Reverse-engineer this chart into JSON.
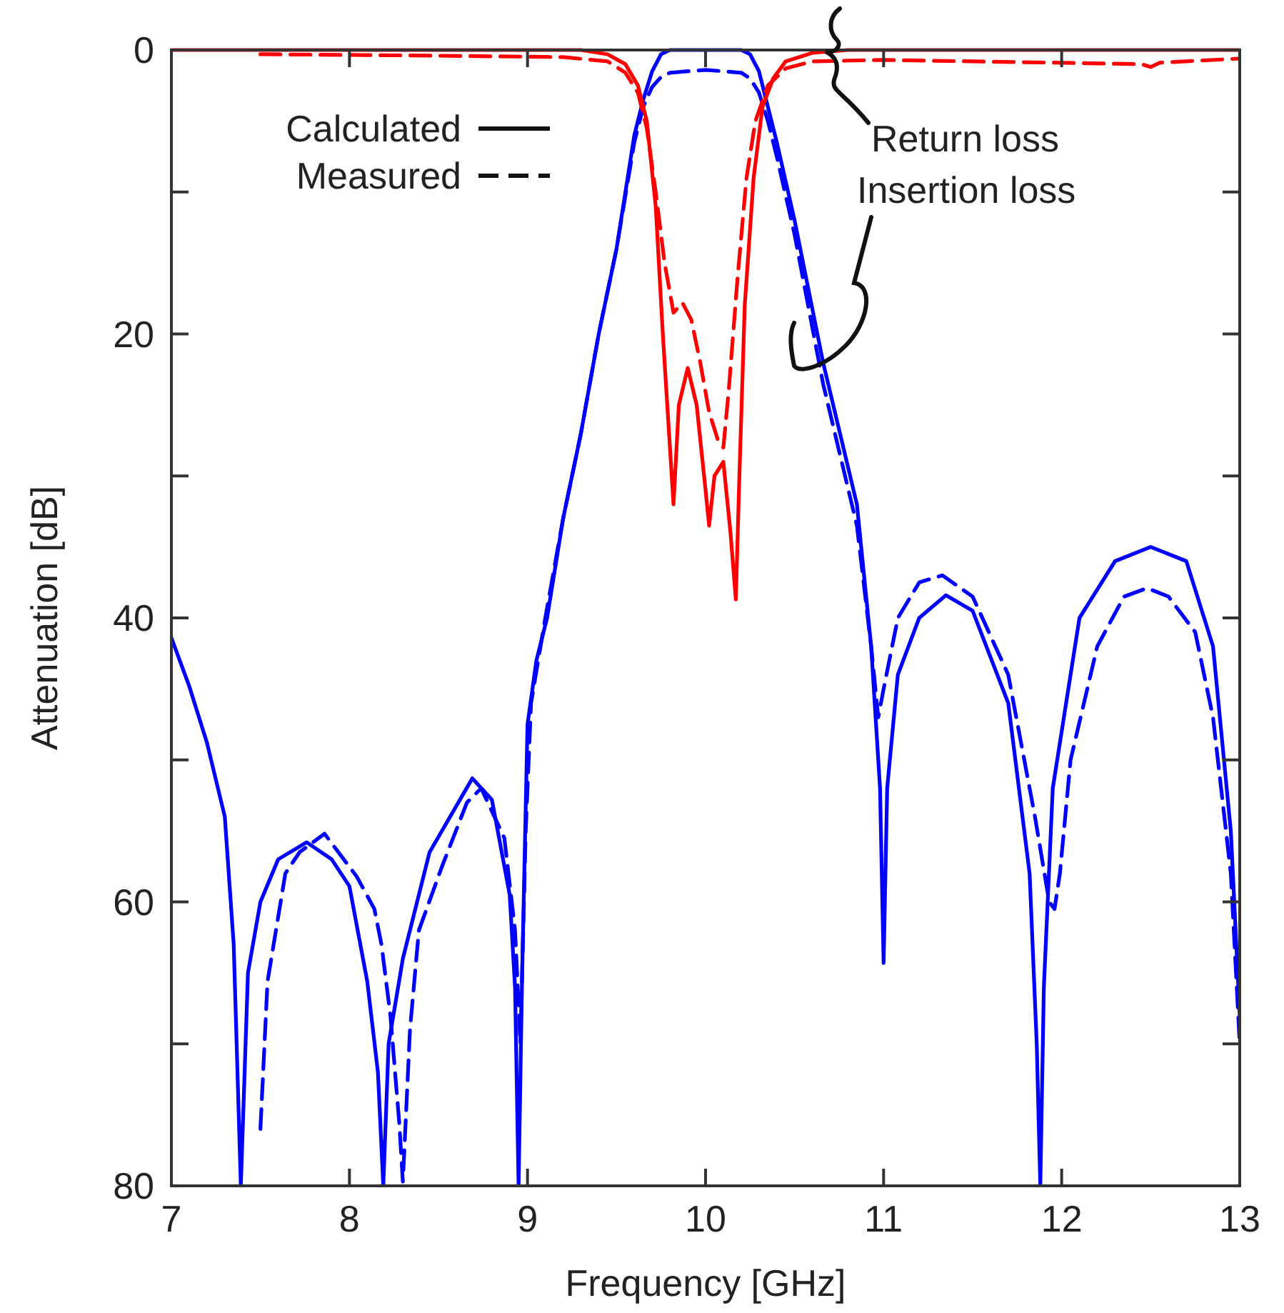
{
  "chart_data": {
    "type": "line",
    "xlabel": "Frequency [GHz]",
    "ylabel": "Attenuation [dB]",
    "xlim": [
      7,
      13
    ],
    "ylim": [
      80,
      0
    ],
    "xticks": [
      7,
      8,
      9,
      10,
      11,
      12,
      13
    ],
    "yticks": [
      0,
      {
        "value": 10,
        "label": null
      },
      20,
      {
        "value": 30,
        "label": null
      },
      40,
      {
        "value": 50,
        "label": null
      },
      60,
      {
        "value": 70,
        "label": null
      },
      80
    ],
    "grid": false,
    "annotations": [
      "Calculated",
      "Measured",
      "Return loss",
      "Insertion loss"
    ],
    "series": [
      {
        "color": "#0000ff",
        "line_style": "solid",
        "x": [
          7,
          7.1,
          7.2,
          7.3,
          7.35,
          7.39,
          7.43,
          7.5,
          7.6,
          7.76,
          7.9,
          8.0,
          8.1,
          8.16,
          8.19,
          8.22,
          8.3,
          8.45,
          8.69,
          8.8,
          8.9,
          8.93,
          8.95,
          8.97,
          9.0,
          9.05,
          9.11,
          9.2,
          9.3,
          9.4,
          9.5,
          9.6,
          9.65,
          9.7,
          9.75,
          9.8,
          10.0,
          10.2,
          10.25,
          10.3,
          10.35,
          10.4,
          10.5,
          10.66,
          10.85,
          10.93,
          10.98,
          11.0,
          11.02,
          11.08,
          11.2,
          11.35,
          11.5,
          11.7,
          11.82,
          11.86,
          11.88,
          11.9,
          11.95,
          12.1,
          12.3,
          12.5,
          12.7,
          12.85,
          12.95,
          13
        ],
        "values": [
          41.4,
          44.8,
          48.8,
          54,
          63,
          80,
          65,
          60,
          57,
          55.8,
          57,
          58.9,
          65.6,
          72,
          80,
          70,
          64,
          56.5,
          51.3,
          52.8,
          59.5,
          66,
          80,
          65,
          47.5,
          43,
          40,
          33,
          27,
          20,
          14,
          6,
          3.5,
          1.5,
          0.3,
          0,
          0,
          0,
          0.3,
          1.5,
          4,
          6.5,
          12,
          22,
          32,
          42,
          52,
          64.3,
          52,
          44,
          40,
          38.4,
          39.5,
          46,
          58,
          70,
          80,
          66,
          52,
          40,
          36,
          35,
          36,
          42,
          55,
          68
        ]
      },
      {
        "color": "#0000ff",
        "line_style": "dashed",
        "x": [
          7.5,
          7.54,
          7.64,
          7.72,
          7.86,
          8.04,
          8.14,
          8.18,
          8.23,
          8.28,
          8.3,
          8.34,
          8.39,
          8.52,
          8.66,
          8.74,
          8.87,
          8.93,
          8.96,
          8.99,
          9.02,
          9.1,
          9.2,
          9.3,
          9.4,
          9.5,
          9.6,
          9.65,
          9.7,
          9.75,
          9.8,
          10.0,
          10.2,
          10.25,
          10.3,
          10.35,
          10.4,
          10.5,
          10.66,
          10.85,
          10.93,
          10.97,
          11.0,
          11.08,
          11.2,
          11.33,
          11.5,
          11.7,
          11.85,
          11.93,
          11.96,
          11.99,
          12.05,
          12.2,
          12.35,
          12.48,
          12.6,
          12.75,
          12.85,
          12.95,
          13
        ],
        "values": [
          76,
          65.6,
          58,
          56.5,
          55.2,
          58.2,
          60.5,
          63,
          68,
          75.6,
          79.7,
          69,
          62,
          57.5,
          53,
          52,
          55.5,
          62,
          70,
          55,
          46,
          40,
          33,
          27,
          20,
          14,
          6.5,
          4,
          2.6,
          1.9,
          1.6,
          1.4,
          1.6,
          2,
          3,
          5,
          7.5,
          13,
          23.5,
          33.5,
          42,
          47,
          45,
          40,
          37.5,
          37,
          38.5,
          44,
          54,
          60,
          60.5,
          58,
          50,
          42,
          38.5,
          37.9,
          38.5,
          41,
          47,
          58,
          70
        ]
      },
      {
        "color": "#ff0000",
        "line_style": "solid",
        "x": [
          7,
          9.3,
          9.45,
          9.55,
          9.62,
          9.67,
          9.72,
          9.76,
          9.8,
          9.82,
          9.85,
          9.9,
          9.95,
          10.0,
          10.02,
          10.05,
          10.1,
          10.14,
          10.17,
          10.19,
          10.22,
          10.27,
          10.32,
          10.38,
          10.45,
          10.6,
          10.8,
          13
        ],
        "values": [
          0,
          0,
          0.3,
          1,
          2.5,
          5,
          11,
          20,
          28,
          32,
          25,
          22.4,
          25,
          31,
          33.5,
          30,
          29,
          34,
          38.7,
          30,
          18,
          9,
          4,
          2,
          0.8,
          0.2,
          0,
          0
        ]
      },
      {
        "color": "#ff0000",
        "line_style": "dashed",
        "x": [
          7.5,
          8.5,
          9.2,
          9.45,
          9.55,
          9.62,
          9.67,
          9.72,
          9.77,
          9.82,
          9.87,
          9.92,
          9.97,
          10.02,
          10.07,
          10.1,
          10.13,
          10.18,
          10.23,
          10.28,
          10.35,
          10.45,
          10.6,
          11,
          12,
          12.45,
          12.5,
          12.55,
          13
        ],
        "values": [
          0.3,
          0.4,
          0.5,
          0.8,
          1.6,
          3,
          5.5,
          10,
          15,
          18.5,
          17.8,
          19,
          22,
          25.5,
          27.5,
          28,
          24,
          16,
          9,
          5,
          2.5,
          1.3,
          0.8,
          0.7,
          0.9,
          1.0,
          1.2,
          0.9,
          0.6
        ]
      }
    ]
  }
}
